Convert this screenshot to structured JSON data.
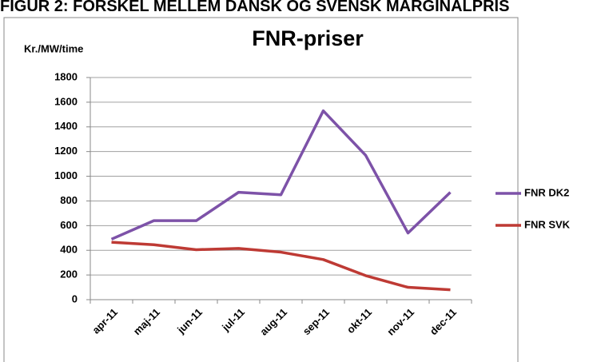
{
  "header": {
    "title": "FIGUR 2: FORSKEL MELLEM DANSK OG SVENSK MARGINALPRIS"
  },
  "chart_data": {
    "type": "line",
    "title": "FNR-priser",
    "y_label": "Kr./MW/time",
    "categories": [
      "apr-11",
      "maj-11",
      "jun-11",
      "jul-11",
      "aug-11",
      "sep-11",
      "okt-11",
      "nov-11",
      "dec-11"
    ],
    "series": [
      {
        "name": "FNR DK2",
        "color": "#7d52a8",
        "values": [
          490,
          640,
          640,
          870,
          850,
          1530,
          1170,
          540,
          870
        ]
      },
      {
        "name": "FNR SVK",
        "color": "#be3a34",
        "values": [
          465,
          445,
          405,
          415,
          385,
          325,
          195,
          100,
          80
        ]
      }
    ],
    "ylim": [
      0,
      1800
    ],
    "yticks": [
      0,
      200,
      400,
      600,
      800,
      1000,
      1200,
      1400,
      1600,
      1800
    ],
    "grid": true,
    "legend": "right"
  }
}
